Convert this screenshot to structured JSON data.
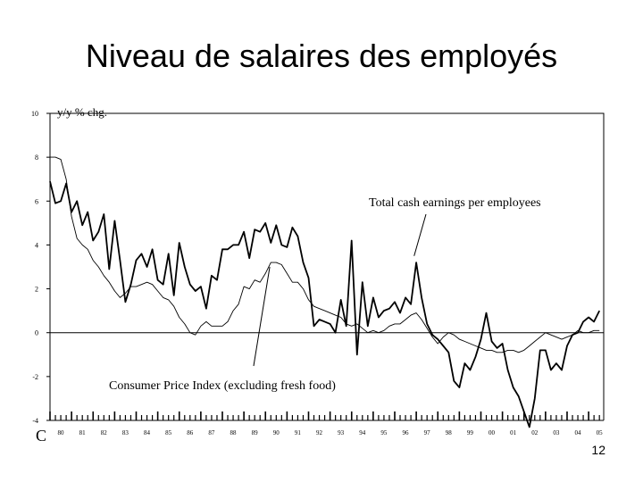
{
  "slide": {
    "title": "Niveau de salaires des employés",
    "page_number": "12",
    "corner_letter": "C"
  },
  "chart_data": {
    "type": "line",
    "ylabel": "y/y % chg.",
    "ylim": [
      -4,
      10
    ],
    "yticks": [
      10,
      8,
      6,
      4,
      2,
      0,
      -2,
      -4
    ],
    "x_range": [
      1980.0,
      2005.7
    ],
    "x_tick_labels": [
      {
        "x": 1980,
        "label": "80"
      },
      {
        "x": 1981,
        "label": "81"
      },
      {
        "x": 1982,
        "label": "82"
      },
      {
        "x": 1983,
        "label": "83"
      },
      {
        "x": 1984,
        "label": "84"
      },
      {
        "x": 1985,
        "label": "85"
      },
      {
        "x": 1986,
        "label": "86"
      },
      {
        "x": 1987,
        "label": "87"
      },
      {
        "x": 1988,
        "label": "88"
      },
      {
        "x": 1989,
        "label": "89"
      },
      {
        "x": 1990,
        "label": "90"
      },
      {
        "x": 1991,
        "label": "91"
      },
      {
        "x": 1992,
        "label": "92"
      },
      {
        "x": 1993,
        "label": "93"
      },
      {
        "x": 1994,
        "label": "94"
      },
      {
        "x": 1995,
        "label": "95"
      },
      {
        "x": 1996,
        "label": "96"
      },
      {
        "x": 1997,
        "label": "97"
      },
      {
        "x": 1998,
        "label": "98"
      },
      {
        "x": 1999,
        "label": "99"
      },
      {
        "x": 2000,
        "label": "00"
      },
      {
        "x": 2001,
        "label": "01"
      },
      {
        "x": 2002,
        "label": "02"
      },
      {
        "x": 2003,
        "label": "03"
      },
      {
        "x": 2004,
        "label": "04"
      },
      {
        "x": 2005,
        "label": "05"
      }
    ],
    "zero_line": true,
    "grid": false,
    "series": [
      {
        "name": "Total cash earnings per employees",
        "x": [
          1980.0,
          1980.25,
          1980.5,
          1980.75,
          1981.0,
          1981.25,
          1981.5,
          1981.75,
          1982.0,
          1982.25,
          1982.5,
          1982.75,
          1983.0,
          1983.25,
          1983.5,
          1983.75,
          1984.0,
          1984.25,
          1984.5,
          1984.75,
          1985.0,
          1985.25,
          1985.5,
          1985.75,
          1986.0,
          1986.25,
          1986.5,
          1986.75,
          1987.0,
          1987.25,
          1987.5,
          1987.75,
          1988.0,
          1988.25,
          1988.5,
          1988.75,
          1989.0,
          1989.25,
          1989.5,
          1989.75,
          1990.0,
          1990.25,
          1990.5,
          1990.75,
          1991.0,
          1991.25,
          1991.5,
          1991.75,
          1992.0,
          1992.25,
          1992.5,
          1992.75,
          1993.0,
          1993.25,
          1993.5,
          1993.75,
          1994.0,
          1994.25,
          1994.5,
          1994.75,
          1995.0,
          1995.25,
          1995.5,
          1995.75,
          1996.0,
          1996.25,
          1996.5,
          1996.75,
          1997.0,
          1997.25,
          1997.5,
          1997.75,
          1998.0,
          1998.25,
          1998.5,
          1998.75,
          1999.0,
          1999.25,
          1999.5,
          1999.75,
          2000.0,
          2000.25,
          2000.5,
          2000.75,
          2001.0,
          2001.25,
          2001.5,
          2001.75,
          2002.0,
          2002.25,
          2002.5,
          2002.75,
          2003.0,
          2003.25,
          2003.5,
          2003.75,
          2004.0,
          2004.25,
          2004.5,
          2004.75,
          2005.0,
          2005.25,
          2005.5
        ],
        "values": [
          6.9,
          5.9,
          6.0,
          6.8,
          5.5,
          6.0,
          4.9,
          5.5,
          4.2,
          4.6,
          5.4,
          2.9,
          5.1,
          3.3,
          1.4,
          2.2,
          3.3,
          3.6,
          3.0,
          3.8,
          2.4,
          2.2,
          3.6,
          1.7,
          4.1,
          3.0,
          2.2,
          1.9,
          2.1,
          1.1,
          2.6,
          2.4,
          3.8,
          3.8,
          4.0,
          4.0,
          4.6,
          3.4,
          4.7,
          4.6,
          5.0,
          4.1,
          4.9,
          4.0,
          3.9,
          4.8,
          4.4,
          3.2,
          2.5,
          0.3,
          0.6,
          0.5,
          0.4,
          0.0,
          1.5,
          0.3,
          4.2,
          -1.0,
          2.3,
          0.3,
          1.6,
          0.7,
          1.0,
          1.1,
          1.4,
          0.9,
          1.6,
          1.3,
          3.2,
          1.6,
          0.4,
          -0.1,
          -0.3,
          -0.6,
          -0.9,
          -2.2,
          -2.5,
          -1.4,
          -1.7,
          -1.1,
          -0.3,
          0.9,
          -0.4,
          -0.7,
          -0.5,
          -1.7,
          -2.5,
          -2.9,
          -3.6,
          -4.3,
          -3.0,
          -0.8,
          -0.8,
          -1.7,
          -1.4,
          -1.7,
          -0.6,
          -0.1,
          0.0,
          0.5,
          0.7,
          0.5,
          1.0
        ]
      },
      {
        "name": "Consumer Price Index (excluding fresh food)",
        "x": [
          1980.0,
          1980.25,
          1980.5,
          1980.75,
          1981.0,
          1981.25,
          1981.5,
          1981.75,
          1982.0,
          1982.25,
          1982.5,
          1982.75,
          1983.0,
          1983.25,
          1983.5,
          1983.75,
          1984.0,
          1984.25,
          1984.5,
          1984.75,
          1985.0,
          1985.25,
          1985.5,
          1985.75,
          1986.0,
          1986.25,
          1986.5,
          1986.75,
          1987.0,
          1987.25,
          1987.5,
          1987.75,
          1988.0,
          1988.25,
          1988.5,
          1988.75,
          1989.0,
          1989.25,
          1989.5,
          1989.75,
          1990.0,
          1990.25,
          1990.5,
          1990.75,
          1991.0,
          1991.25,
          1991.5,
          1991.75,
          1992.0,
          1992.25,
          1992.5,
          1992.75,
          1993.0,
          1993.25,
          1993.5,
          1993.75,
          1994.0,
          1994.25,
          1994.5,
          1994.75,
          1995.0,
          1995.25,
          1995.5,
          1995.75,
          1996.0,
          1996.25,
          1996.5,
          1996.75,
          1997.0,
          1997.25,
          1997.5,
          1997.75,
          1998.0,
          1998.25,
          1998.5,
          1998.75,
          1999.0,
          1999.25,
          1999.5,
          1999.75,
          2000.0,
          2000.25,
          2000.5,
          2000.75,
          2001.0,
          2001.25,
          2001.5,
          2001.75,
          2002.0,
          2002.25,
          2002.5,
          2002.75,
          2003.0,
          2003.25,
          2003.5,
          2003.75,
          2004.0,
          2004.25,
          2004.5,
          2004.75,
          2005.0,
          2005.25,
          2005.5
        ],
        "values": [
          8.0,
          8.0,
          7.9,
          7.0,
          5.3,
          4.3,
          4.0,
          3.8,
          3.3,
          3.0,
          2.6,
          2.3,
          1.9,
          1.6,
          1.8,
          2.1,
          2.1,
          2.2,
          2.3,
          2.2,
          1.9,
          1.6,
          1.5,
          1.2,
          0.7,
          0.4,
          0.0,
          -0.1,
          0.3,
          0.5,
          0.3,
          0.3,
          0.3,
          0.5,
          1.0,
          1.3,
          2.1,
          2.0,
          2.4,
          2.3,
          2.7,
          3.2,
          3.2,
          3.1,
          2.7,
          2.3,
          2.3,
          2.0,
          1.5,
          1.2,
          1.1,
          1.0,
          0.9,
          0.8,
          0.7,
          0.4,
          0.3,
          0.4,
          0.2,
          0.0,
          0.1,
          0.0,
          0.1,
          0.3,
          0.4,
          0.4,
          0.6,
          0.8,
          0.9,
          0.6,
          0.2,
          -0.2,
          -0.5,
          -0.2,
          0.0,
          -0.1,
          -0.3,
          -0.4,
          -0.5,
          -0.6,
          -0.7,
          -0.8,
          -0.8,
          -0.9,
          -0.9,
          -0.8,
          -0.8,
          -0.9,
          -0.8,
          -0.6,
          -0.4,
          -0.2,
          0.0,
          -0.1,
          -0.2,
          -0.3,
          -0.2,
          -0.1,
          0.1,
          0.0,
          0.0,
          0.1,
          0.1
        ]
      }
    ],
    "annotations": [
      {
        "text": "Total cash earnings per employees",
        "series": 0,
        "points_to": {
          "x": 1996.9,
          "y": 3.5
        }
      },
      {
        "text": "Consumer Price Index (excluding fresh food)",
        "series": 1,
        "points_to": {
          "x": 1990.2,
          "y": 3.0
        }
      }
    ]
  }
}
